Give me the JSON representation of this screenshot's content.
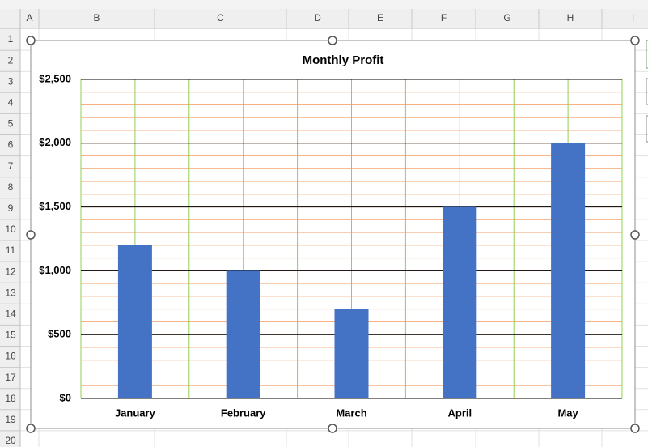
{
  "sheet": {
    "columns": [
      "A",
      "B",
      "C",
      "D",
      "E",
      "F",
      "G",
      "H",
      "I"
    ],
    "rows": [
      "1",
      "2",
      "3",
      "4",
      "5",
      "6",
      "7",
      "8",
      "9",
      "10",
      "11",
      "12",
      "13",
      "14",
      "15",
      "16",
      "17",
      "18",
      "19",
      "20"
    ]
  },
  "chart_data": {
    "type": "bar",
    "title": "Monthly Profit",
    "categories": [
      "January",
      "February",
      "March",
      "April",
      "May"
    ],
    "values": [
      1200,
      1000,
      700,
      1500,
      2000
    ],
    "color": "#4472c4",
    "ylim": [
      0,
      2500
    ],
    "yticks": [
      {
        "value": 0,
        "label": "$0"
      },
      {
        "value": 500,
        "label": "$500"
      },
      {
        "value": 1000,
        "label": "$1,000"
      },
      {
        "value": 1500,
        "label": "$1,500"
      },
      {
        "value": 2000,
        "label": "$2,000"
      },
      {
        "value": 2500,
        "label": "$2,500"
      }
    ],
    "grid": true,
    "grid_color": "#000000",
    "minor_grid_step": 100,
    "minor_grid_color": "#f4b183",
    "x_grid_color": "#92d050"
  }
}
